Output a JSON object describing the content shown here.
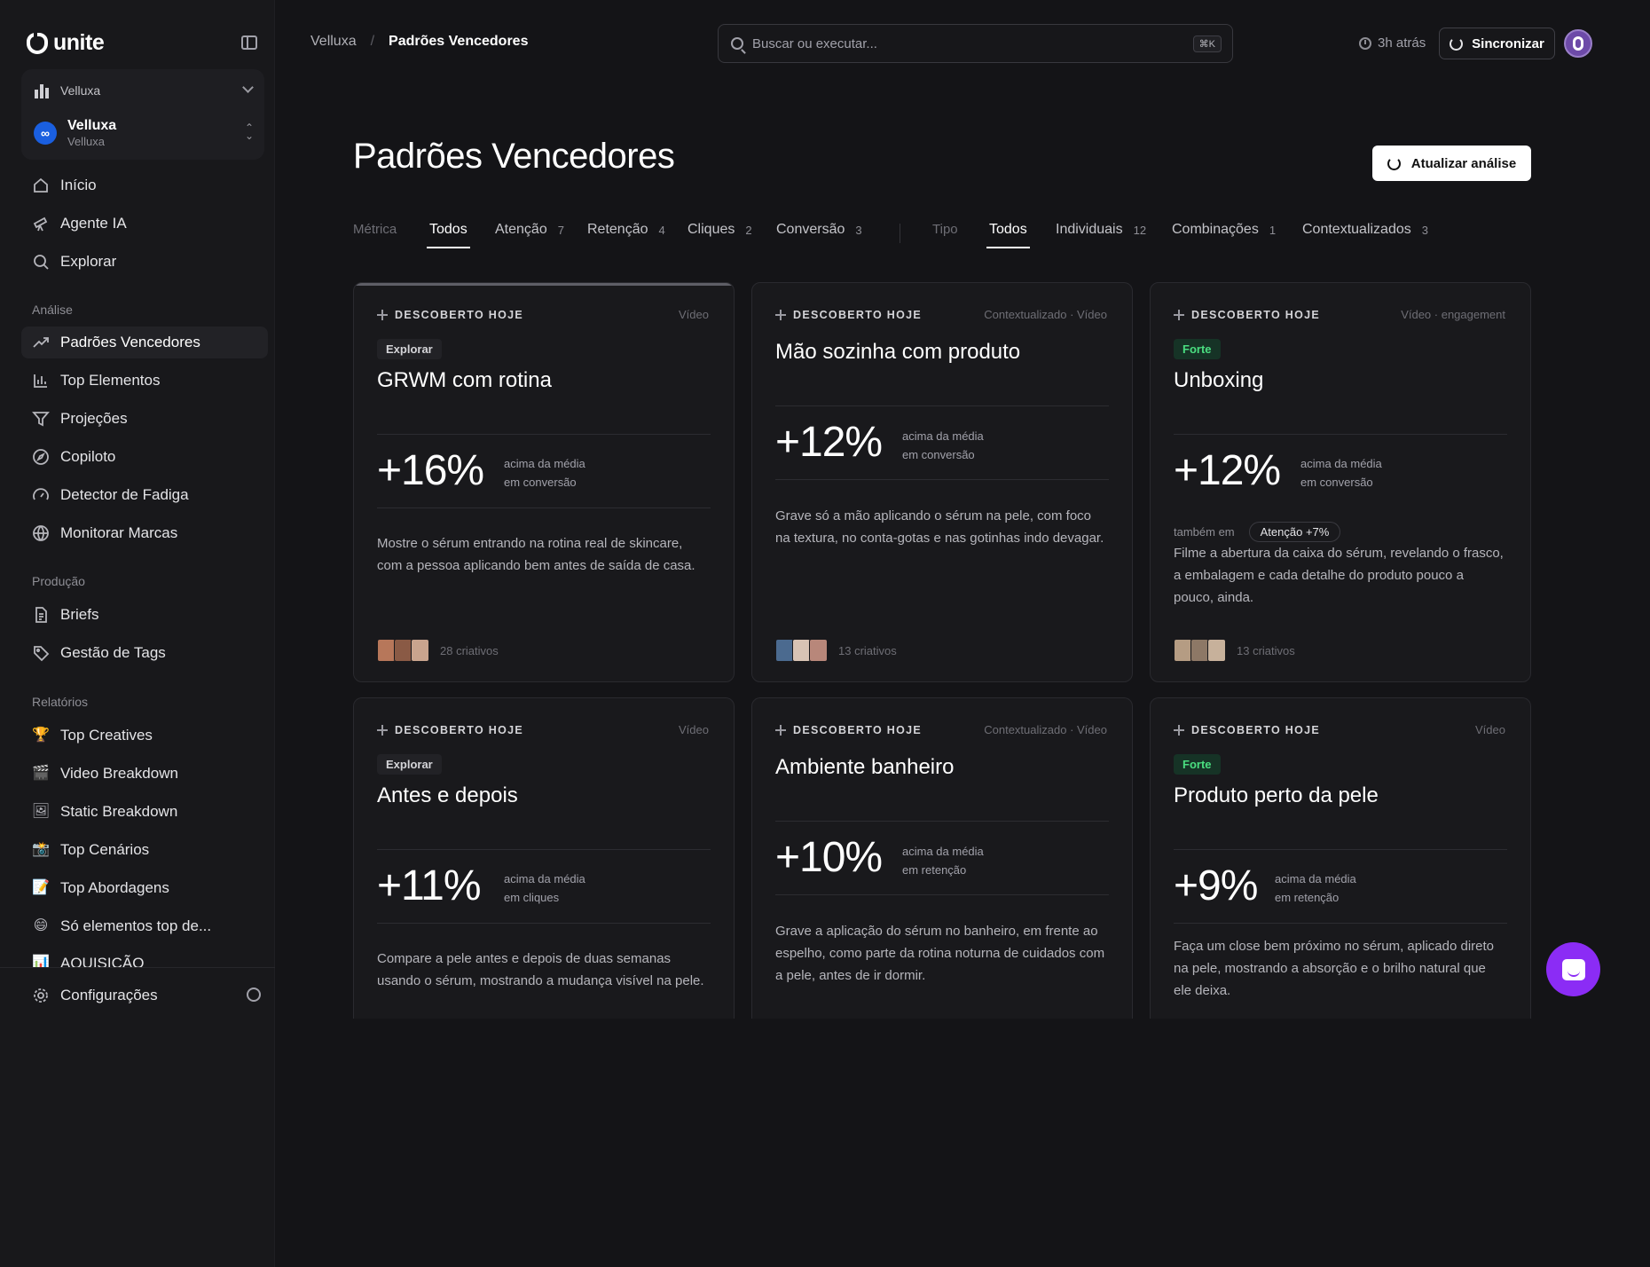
{
  "app": {
    "brand": "unite"
  },
  "sidebar": {
    "workspace": "Velluxa",
    "account": {
      "name": "Velluxa",
      "subtitle": "Velluxa",
      "logo": "∞"
    },
    "main_nav": [
      {
        "label": "Início",
        "icon": "home-icon"
      },
      {
        "label": "Agente IA",
        "icon": "telescope-icon"
      },
      {
        "label": "Explorar",
        "icon": "search-icon"
      }
    ],
    "sections": {
      "analysis": "Análise",
      "production": "Produção",
      "reports": "Relatórios"
    },
    "analysis_nav": [
      {
        "label": "Padrões Vencedores",
        "icon": "trending-up-icon",
        "active": true
      },
      {
        "label": "Top Elementos",
        "icon": "bar-chart-icon"
      },
      {
        "label": "Projeções",
        "icon": "filter-icon"
      },
      {
        "label": "Copiloto",
        "icon": "compass-icon"
      },
      {
        "label": "Detector de Fadiga",
        "icon": "gauge-icon"
      },
      {
        "label": "Monitorar Marcas",
        "icon": "globe-icon"
      }
    ],
    "production_nav": [
      {
        "label": "Briefs",
        "icon": "document-icon"
      },
      {
        "label": "Gestão de Tags",
        "icon": "tag-icon"
      }
    ],
    "reports_nav": [
      {
        "label": "Top Creatives",
        "emoji": "🏆"
      },
      {
        "label": "Video Breakdown",
        "emoji": "🎬"
      },
      {
        "label": "Static Breakdown",
        "emoji": "🖼"
      },
      {
        "label": "Top Cenários",
        "emoji": "📸"
      },
      {
        "label": "Top Abordagens",
        "emoji": "📝"
      },
      {
        "label": "Só elementos top de...",
        "emoji": "😄"
      },
      {
        "label": "AQUISIÇÃO",
        "emoji": "📊"
      }
    ],
    "settings": "Configurações"
  },
  "topbar": {
    "breadcrumb_root": "Velluxa",
    "breadcrumb_sep": "/",
    "breadcrumb_current": "Padrões Vencedores",
    "search_placeholder": "Buscar ou executar...",
    "search_shortcut": "⌘K",
    "last_sync": "3h atrás",
    "sync_label": "Sincronizar"
  },
  "page": {
    "title": "Padrões Vencedores",
    "refresh_label": "Atualizar análise"
  },
  "filters": {
    "metric_label": "Métrica",
    "metric_tabs": [
      {
        "label": "Todos",
        "count": "",
        "active": true
      },
      {
        "label": "Atenção",
        "count": "7"
      },
      {
        "label": "Retenção",
        "count": "4"
      },
      {
        "label": "Cliques",
        "count": "2"
      },
      {
        "label": "Conversão",
        "count": "3"
      }
    ],
    "type_label": "Tipo",
    "type_tabs": [
      {
        "label": "Todos",
        "count": "",
        "active": true
      },
      {
        "label": "Individuais",
        "count": "12"
      },
      {
        "label": "Combinações",
        "count": "1"
      },
      {
        "label": "Contextualizados",
        "count": "3"
      }
    ]
  },
  "cards": [
    {
      "discovered": "DESCOBERTO HOJE",
      "type": "Vídeo",
      "badge": "Explorar",
      "title": "GRWM com rotina",
      "metric": "+16%",
      "metric_line1": "acima da média",
      "metric_line2": "em conversão",
      "body": "Mostre o sérum entrando na rotina real de skincare, com a pessoa aplicando bem antes de saída de casa.",
      "creatives": "28 criativos"
    },
    {
      "discovered": "DESCOBERTO HOJE",
      "type": "Contextualizado · Vídeo",
      "badge": "",
      "title": "Mão sozinha com produto",
      "metric": "+12%",
      "metric_line1": "acima da média",
      "metric_line2": "em conversão",
      "body": "Grave só a mão aplicando o sérum na pele, com foco na textura, no conta-gotas e nas gotinhas indo devagar.",
      "creatives": "13 criativos"
    },
    {
      "discovered": "DESCOBERTO HOJE",
      "type": "Vídeo · engagement",
      "badge": "Forte",
      "title": "Unboxing",
      "metric": "+12%",
      "metric_line1": "acima da média",
      "metric_line2": "em conversão",
      "also_label": "também em",
      "also_pill": "Atenção +7%",
      "body": "Filme a abertura da caixa do sérum, revelando o frasco, a embalagem e cada detalhe do produto pouco a pouco, ainda.",
      "creatives": "13 criativos"
    },
    {
      "discovered": "DESCOBERTO HOJE",
      "type": "Vídeo",
      "badge": "Explorar",
      "title": "Antes e depois",
      "metric": "+11%",
      "metric_line1": "acima da média",
      "metric_line2": "em cliques",
      "body": "Compare a pele antes e depois de duas semanas usando o sérum, mostrando a mudança visível na pele."
    },
    {
      "discovered": "DESCOBERTO HOJE",
      "type": "Contextualizado · Vídeo",
      "badge": "",
      "title": "Ambiente banheiro",
      "metric": "+10%",
      "metric_line1": "acima da média",
      "metric_line2": "em retenção",
      "body": "Grave a aplicação do sérum no banheiro, em frente ao espelho, como parte da rotina noturna de cuidados com a pele, antes de ir dormir."
    },
    {
      "discovered": "DESCOBERTO HOJE",
      "type": "Vídeo",
      "badge": "Forte",
      "title": "Produto perto da pele",
      "metric": "+9%",
      "metric_line1": "acima da média",
      "metric_line2": "em retenção",
      "body": "Faça um close bem próximo no sérum, aplicado direto na pele, mostrando a absorção e o brilho natural que ele deixa."
    }
  ]
}
